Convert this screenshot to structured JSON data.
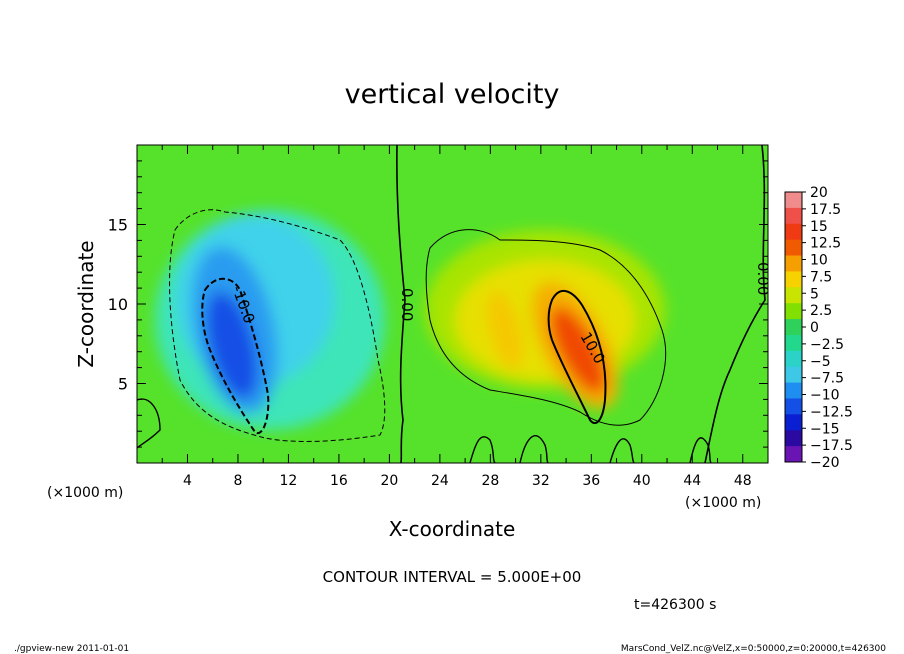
{
  "chart_data": {
    "type": "heatmap",
    "title": "vertical velocity",
    "xlabel": "X-coordinate",
    "ylabel": "Z-coordinate",
    "x_unit_left": "(×1000 m)",
    "x_unit_right": "(×1000 m)",
    "xlim": [
      0,
      50
    ],
    "ylim": [
      0,
      20
    ],
    "x_ticks": [
      "4",
      "8",
      "12",
      "16",
      "20",
      "24",
      "28",
      "32",
      "36",
      "40",
      "44",
      "48"
    ],
    "y_ticks": [
      "5",
      "10",
      "15"
    ],
    "contour_labels": [
      "-10.0",
      "0.00",
      "10.0",
      "0.00"
    ],
    "contour_interval_text": "CONTOUR INTERVAL = 5.000E+00",
    "time_text": "t=426300 s",
    "footer_left": "./gpview-new  2011-01-01",
    "footer_right": "MarsCond_VelZ.nc@VelZ,x=0:50000,z=0:20000,t=426300",
    "colorbar": {
      "labels": [
        "20",
        "17.5",
        "15",
        "12.5",
        "10",
        "7.5",
        "5",
        "2.5",
        "0",
        "−2.5",
        "−5",
        "−7.5",
        "−10",
        "−12.5",
        "−15",
        "−17.5",
        "−20"
      ],
      "colors": [
        "#f08c8c",
        "#f0504a",
        "#f03a14",
        "#f05a00",
        "#f5a000",
        "#f5d200",
        "#c8e400",
        "#82e000",
        "#2ed25a",
        "#22d88c",
        "#2ad2c8",
        "#3cc8e6",
        "#1e8ef0",
        "#1450e6",
        "#0a1ed2",
        "#2a0aa0",
        "#6a14b4"
      ]
    },
    "features": [
      {
        "name": "downdraft",
        "x": 8,
        "z": 8,
        "peak": -13
      },
      {
        "name": "updraft",
        "x": 35,
        "z": 7,
        "peak": 13
      }
    ]
  }
}
